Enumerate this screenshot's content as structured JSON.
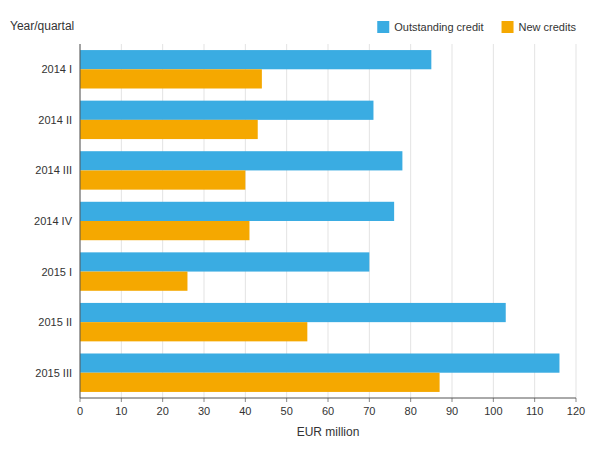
{
  "chart_data": {
    "type": "bar",
    "orientation": "horizontal",
    "categories": [
      "2014  I",
      "2014  II",
      "2014  III",
      "2014  IV",
      "2015  I",
      "2015  II",
      "2015  III"
    ],
    "series": [
      {
        "name": "Outstanding credit",
        "color": "#3AACE2",
        "values": [
          85,
          71,
          78,
          76,
          70,
          103,
          116
        ]
      },
      {
        "name": "New credits",
        "color": "#F5A800",
        "values": [
          44,
          43,
          40,
          41,
          26,
          55,
          87
        ]
      }
    ],
    "xlabel": "EUR million",
    "ylabel": "Year/quartal",
    "xlim": [
      0,
      120
    ],
    "xticks": [
      0,
      10,
      20,
      30,
      40,
      50,
      60,
      70,
      80,
      90,
      100,
      110,
      120
    ],
    "grid": true,
    "legend": "upper right"
  }
}
